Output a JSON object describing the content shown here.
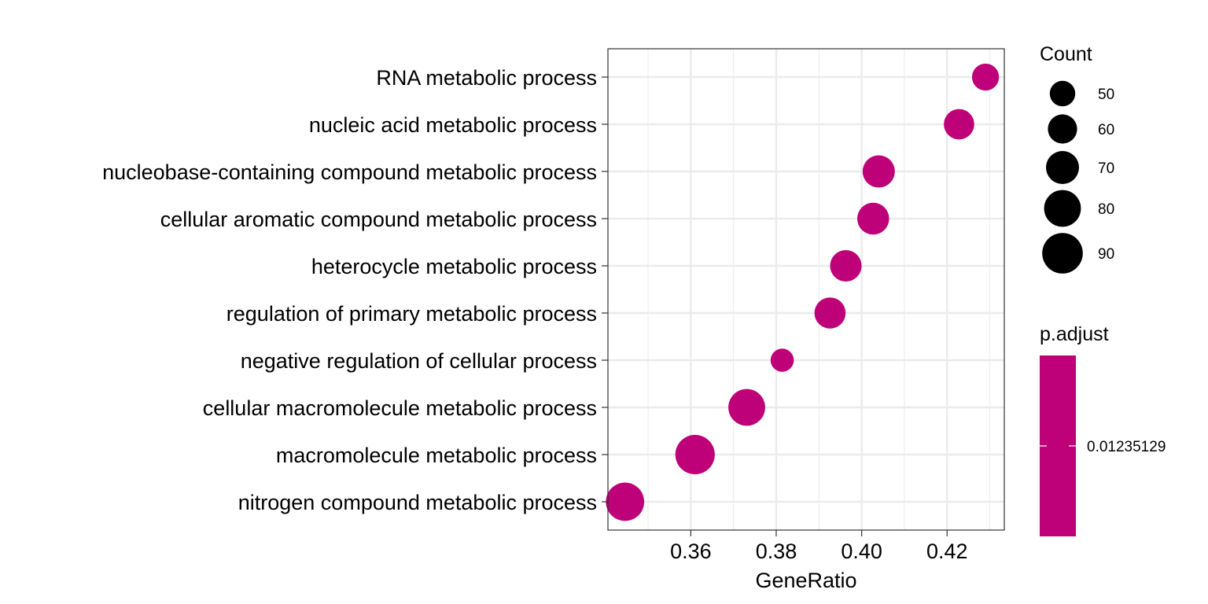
{
  "chart_data": {
    "type": "scatter",
    "title": "",
    "xlabel": "GeneRatio",
    "ylabel": "",
    "xlim": [
      0.3406,
      0.4334
    ],
    "x_ticks": [
      0.36,
      0.38,
      0.4,
      0.42
    ],
    "x_tick_labels": [
      "0.36",
      "0.38",
      "0.40",
      "0.42"
    ],
    "grid": true,
    "point_color": "#BE0178",
    "categories": [
      "RNA metabolic process",
      "nucleic acid metabolic process",
      "nucleobase-containing compound metabolic process",
      "cellular aromatic compound metabolic process",
      "heterocycle metabolic process",
      "regulation of primary metabolic process",
      "negative regulation of cellular process",
      "cellular macromolecule metabolic process",
      "macromolecule metabolic process",
      "nitrogen compound metabolic process"
    ],
    "points": [
      {
        "term": "RNA metabolic process",
        "gene_ratio": 0.429,
        "count": 54
      },
      {
        "term": "nucleic acid metabolic process",
        "gene_ratio": 0.4228,
        "count": 63
      },
      {
        "term": "nucleobase-containing compound metabolic process",
        "gene_ratio": 0.404,
        "count": 68
      },
      {
        "term": "cellular aromatic compound metabolic process",
        "gene_ratio": 0.4027,
        "count": 67
      },
      {
        "term": "heterocycle metabolic process",
        "gene_ratio": 0.3963,
        "count": 66
      },
      {
        "term": "regulation of primary metabolic process",
        "gene_ratio": 0.3926,
        "count": 65
      },
      {
        "term": "negative regulation of cellular process",
        "gene_ratio": 0.3814,
        "count": 44
      },
      {
        "term": "cellular macromolecule metabolic process",
        "gene_ratio": 0.3731,
        "count": 80
      },
      {
        "term": "macromolecule metabolic process",
        "gene_ratio": 0.361,
        "count": 87
      },
      {
        "term": "nitrogen compound metabolic process",
        "gene_ratio": 0.3446,
        "count": 84
      }
    ],
    "size_legend": {
      "title": "Count",
      "entries": [
        50,
        60,
        70,
        80,
        90
      ],
      "entry_labels": [
        "50",
        "60",
        "70",
        "80",
        "90"
      ]
    },
    "color_legend": {
      "title": "p.adjust",
      "value_label": "0.01235129",
      "color": "#BE0178"
    }
  }
}
